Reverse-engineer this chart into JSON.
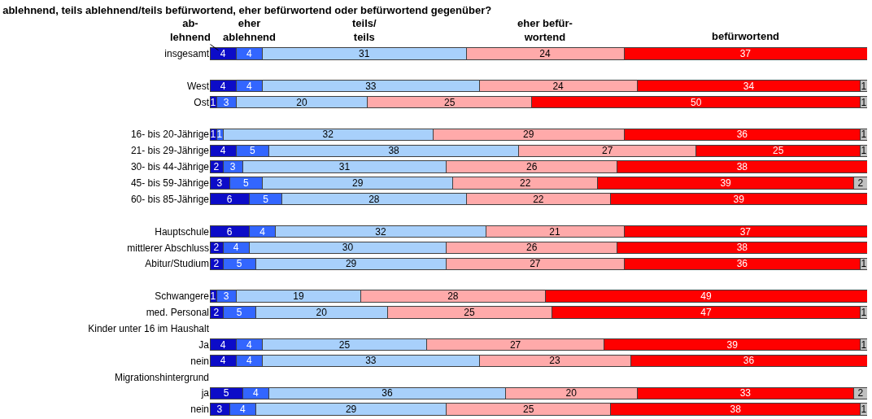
{
  "chart_data": {
    "type": "bar",
    "orientation": "horizontal",
    "stacked": true,
    "title": "ablehnend, teils ablehnend/teils befürwortend, eher befürwortend oder befürwortend gegenüber?",
    "categories": [
      "insgesamt",
      null,
      "West",
      "Ost",
      null,
      "16- bis 20-Jährige",
      "21- bis 29-Jährige",
      "30- bis 44-Jährige",
      "45- bis 59-Jährige",
      "60- bis 85-Jährige",
      null,
      "Hauptschule",
      "mittlerer Abschluss",
      "Abitur/Studium",
      null,
      "Schwangere",
      "med. Personal",
      "Kinder unter 16 im Haushalt",
      "Ja",
      "nein",
      "Migrationshintergrund",
      "ja",
      "nein"
    ],
    "xlim": [
      0,
      100
    ],
    "tick_labels": "y",
    "legend": false,
    "data_labels": true,
    "series": [
      {
        "name": "ab-\nlehnend",
        "color": "#0c0cc8",
        "values": [
          4,
          null,
          4,
          1,
          null,
          1,
          4,
          2,
          3,
          6,
          null,
          6,
          2,
          2,
          null,
          1,
          2,
          null,
          4,
          4,
          null,
          5,
          3
        ]
      },
      {
        "name": "eher\nablehnend",
        "color": "#3366ff",
        "values": [
          4,
          null,
          4,
          3,
          null,
          1,
          5,
          3,
          5,
          5,
          null,
          4,
          4,
          5,
          null,
          3,
          5,
          null,
          4,
          4,
          null,
          4,
          4
        ]
      },
      {
        "name": "teils/\nteils",
        "color": "#a8d0fb",
        "values": [
          31,
          null,
          33,
          20,
          null,
          32,
          38,
          31,
          29,
          28,
          null,
          32,
          30,
          29,
          null,
          19,
          20,
          null,
          25,
          33,
          null,
          36,
          29
        ]
      },
      {
        "name": "eher befür-\nwortend",
        "color": "#ffaaaa",
        "values": [
          24,
          null,
          24,
          25,
          null,
          29,
          27,
          26,
          22,
          22,
          null,
          21,
          26,
          27,
          null,
          28,
          25,
          null,
          27,
          23,
          null,
          20,
          25
        ]
      },
      {
        "name": "befürwortend",
        "color": "#ff0000",
        "values": [
          37,
          null,
          34,
          50,
          null,
          36,
          25,
          38,
          39,
          39,
          null,
          37,
          38,
          36,
          null,
          49,
          47,
          null,
          39,
          36,
          null,
          33,
          38
        ]
      },
      {
        "color": "#c0c0c0",
        "values": [
          null,
          null,
          1,
          1,
          null,
          1,
          1,
          null,
          2,
          null,
          null,
          null,
          null,
          1,
          null,
          null,
          1,
          null,
          1,
          null,
          null,
          2,
          1
        ]
      }
    ]
  }
}
